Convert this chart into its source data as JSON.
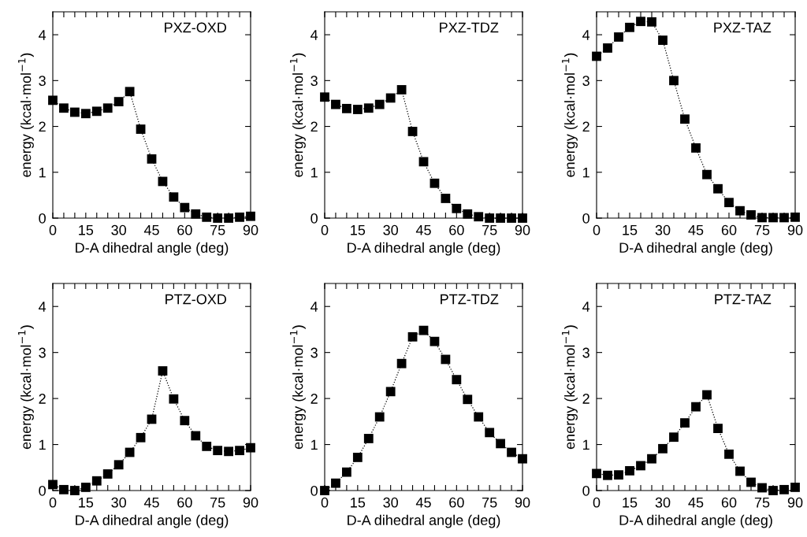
{
  "chart_data": [
    {
      "type": "line",
      "title": "PXZ-OXD",
      "xlabel": "D-A dihedral angle (deg)",
      "ylabel": "energy (kcal·mol$^{−1}$)",
      "x": [
        0,
        5,
        10,
        15,
        20,
        25,
        30,
        35,
        40,
        45,
        50,
        55,
        60,
        65,
        70,
        75,
        80,
        85,
        90
      ],
      "xlim": [
        0,
        90
      ],
      "ylim": [
        0,
        4.5
      ],
      "xticks": [
        0,
        {
          "value": 5,
          "label": null
        },
        {
          "value": 10,
          "label": null
        },
        15,
        {
          "value": 20,
          "label": null
        },
        {
          "value": 25,
          "label": null
        },
        30,
        {
          "value": 35,
          "label": null
        },
        {
          "value": 40,
          "label": null
        },
        45,
        {
          "value": 50,
          "label": null
        },
        {
          "value": 55,
          "label": null
        },
        60,
        {
          "value": 65,
          "label": null
        },
        {
          "value": 70,
          "label": null
        },
        75,
        {
          "value": 80,
          "label": null
        },
        {
          "value": 85,
          "label": null
        },
        90
      ],
      "yticks": [
        0,
        1,
        2,
        3,
        4
      ],
      "marker": "square",
      "line_style": "dotted",
      "grid": false,
      "series": [
        {
          "color": "#000000",
          "values": [
            2.57,
            2.4,
            2.31,
            2.28,
            2.33,
            2.4,
            2.54,
            2.76,
            1.94,
            1.29,
            0.8,
            0.46,
            0.23,
            0.09,
            0.02,
            0.0,
            0.0,
            0.02,
            0.04
          ]
        }
      ]
    },
    {
      "type": "line",
      "title": "PXZ-TDZ",
      "xlabel": "D-A dihedral angle (deg)",
      "ylabel": "energy (kcal·mol$^{−1}$)",
      "x": [
        0,
        5,
        10,
        15,
        20,
        25,
        30,
        35,
        40,
        45,
        50,
        55,
        60,
        65,
        70,
        75,
        80,
        85,
        90
      ],
      "xlim": [
        0,
        90
      ],
      "ylim": [
        0,
        4.5
      ],
      "xticks": [
        0,
        {
          "value": 5,
          "label": null
        },
        {
          "value": 10,
          "label": null
        },
        15,
        {
          "value": 20,
          "label": null
        },
        {
          "value": 25,
          "label": null
        },
        30,
        {
          "value": 35,
          "label": null
        },
        {
          "value": 40,
          "label": null
        },
        45,
        {
          "value": 50,
          "label": null
        },
        {
          "value": 55,
          "label": null
        },
        60,
        {
          "value": 65,
          "label": null
        },
        {
          "value": 70,
          "label": null
        },
        75,
        {
          "value": 80,
          "label": null
        },
        {
          "value": 85,
          "label": null
        },
        90
      ],
      "yticks": [
        0,
        1,
        2,
        3,
        4
      ],
      "marker": "square",
      "line_style": "dotted",
      "grid": false,
      "series": [
        {
          "color": "#000000",
          "values": [
            2.64,
            2.48,
            2.39,
            2.37,
            2.4,
            2.48,
            2.62,
            2.8,
            1.89,
            1.23,
            0.76,
            0.43,
            0.21,
            0.09,
            0.03,
            0.0,
            0.0,
            0.0,
            0.0
          ]
        }
      ]
    },
    {
      "type": "line",
      "title": "PXZ-TAZ",
      "xlabel": "D-A dihedral angle (deg)",
      "ylabel": "energy (kcal·mol$^{−1}$)",
      "x": [
        0,
        5,
        10,
        15,
        20,
        25,
        30,
        35,
        40,
        45,
        50,
        55,
        60,
        65,
        70,
        75,
        80,
        85,
        90
      ],
      "xlim": [
        0,
        90
      ],
      "ylim": [
        0,
        4.5
      ],
      "xticks": [
        0,
        {
          "value": 5,
          "label": null
        },
        {
          "value": 10,
          "label": null
        },
        15,
        {
          "value": 20,
          "label": null
        },
        {
          "value": 25,
          "label": null
        },
        30,
        {
          "value": 35,
          "label": null
        },
        {
          "value": 40,
          "label": null
        },
        45,
        {
          "value": 50,
          "label": null
        },
        {
          "value": 55,
          "label": null
        },
        60,
        {
          "value": 65,
          "label": null
        },
        {
          "value": 70,
          "label": null
        },
        75,
        {
          "value": 80,
          "label": null
        },
        {
          "value": 85,
          "label": null
        },
        90
      ],
      "yticks": [
        0,
        1,
        2,
        3,
        4
      ],
      "marker": "square",
      "line_style": "dotted",
      "grid": false,
      "series": [
        {
          "color": "#000000",
          "values": [
            3.53,
            3.71,
            3.95,
            4.16,
            4.29,
            4.28,
            3.88,
            3.0,
            2.16,
            1.53,
            0.95,
            0.64,
            0.34,
            0.16,
            0.07,
            0.01,
            0.01,
            0.01,
            0.02
          ]
        }
      ]
    },
    {
      "type": "line",
      "title": "PTZ-OXD",
      "xlabel": "D-A dihedral angle (deg)",
      "ylabel": "energy (kcal·mol$^{−1}$)",
      "x": [
        0,
        5,
        10,
        15,
        20,
        25,
        30,
        35,
        40,
        45,
        50,
        55,
        60,
        65,
        70,
        75,
        80,
        85,
        90
      ],
      "xlim": [
        0,
        90
      ],
      "ylim": [
        0,
        4.5
      ],
      "xticks": [
        0,
        {
          "value": 5,
          "label": null
        },
        {
          "value": 10,
          "label": null
        },
        15,
        {
          "value": 20,
          "label": null
        },
        {
          "value": 25,
          "label": null
        },
        30,
        {
          "value": 35,
          "label": null
        },
        {
          "value": 40,
          "label": null
        },
        45,
        {
          "value": 50,
          "label": null
        },
        {
          "value": 55,
          "label": null
        },
        60,
        {
          "value": 65,
          "label": null
        },
        {
          "value": 70,
          "label": null
        },
        75,
        {
          "value": 80,
          "label": null
        },
        {
          "value": 85,
          "label": null
        },
        90
      ],
      "yticks": [
        0,
        1,
        2,
        3,
        4
      ],
      "marker": "square",
      "line_style": "dotted",
      "grid": false,
      "series": [
        {
          "color": "#000000",
          "values": [
            0.13,
            0.02,
            0.0,
            0.07,
            0.21,
            0.36,
            0.56,
            0.83,
            1.15,
            1.55,
            2.6,
            1.99,
            1.52,
            1.19,
            0.96,
            0.87,
            0.85,
            0.87,
            0.93
          ]
        }
      ]
    },
    {
      "type": "line",
      "title": "PTZ-TDZ",
      "xlabel": "D-A dihedral angle (deg)",
      "ylabel": "energy (kcal·mol$^{−1}$)",
      "x": [
        0,
        5,
        10,
        15,
        20,
        25,
        30,
        35,
        40,
        45,
        50,
        55,
        60,
        65,
        70,
        75,
        80,
        85,
        90
      ],
      "xlim": [
        0,
        90
      ],
      "ylim": [
        0,
        4.5
      ],
      "xticks": [
        0,
        {
          "value": 5,
          "label": null
        },
        {
          "value": 10,
          "label": null
        },
        15,
        {
          "value": 20,
          "label": null
        },
        {
          "value": 25,
          "label": null
        },
        30,
        {
          "value": 35,
          "label": null
        },
        {
          "value": 40,
          "label": null
        },
        45,
        {
          "value": 50,
          "label": null
        },
        {
          "value": 55,
          "label": null
        },
        60,
        {
          "value": 65,
          "label": null
        },
        {
          "value": 70,
          "label": null
        },
        75,
        {
          "value": 80,
          "label": null
        },
        {
          "value": 85,
          "label": null
        },
        90
      ],
      "yticks": [
        0,
        1,
        2,
        3,
        4
      ],
      "marker": "square",
      "line_style": "dotted",
      "grid": false,
      "series": [
        {
          "color": "#000000",
          "values": [
            0.0,
            0.16,
            0.4,
            0.72,
            1.13,
            1.6,
            2.15,
            2.76,
            3.34,
            3.48,
            3.24,
            2.85,
            2.41,
            1.98,
            1.6,
            1.26,
            1.02,
            0.83,
            0.69
          ]
        }
      ]
    },
    {
      "type": "line",
      "title": "PTZ-TAZ",
      "xlabel": "D-A dihedral angle (deg)",
      "ylabel": "energy (kcal·mol$^{−1}$)",
      "x": [
        0,
        5,
        10,
        15,
        20,
        25,
        30,
        35,
        40,
        45,
        50,
        55,
        60,
        65,
        70,
        75,
        80,
        85,
        90
      ],
      "xlim": [
        0,
        90
      ],
      "ylim": [
        0,
        4.5
      ],
      "xticks": [
        0,
        {
          "value": 5,
          "label": null
        },
        {
          "value": 10,
          "label": null
        },
        15,
        {
          "value": 20,
          "label": null
        },
        {
          "value": 25,
          "label": null
        },
        30,
        {
          "value": 35,
          "label": null
        },
        {
          "value": 40,
          "label": null
        },
        45,
        {
          "value": 50,
          "label": null
        },
        {
          "value": 55,
          "label": null
        },
        60,
        {
          "value": 65,
          "label": null
        },
        {
          "value": 70,
          "label": null
        },
        75,
        {
          "value": 80,
          "label": null
        },
        {
          "value": 85,
          "label": null
        },
        90
      ],
      "yticks": [
        0,
        1,
        2,
        3,
        4
      ],
      "marker": "square",
      "line_style": "dotted",
      "grid": false,
      "series": [
        {
          "color": "#000000",
          "values": [
            0.37,
            0.33,
            0.34,
            0.43,
            0.54,
            0.69,
            0.91,
            1.16,
            1.47,
            1.82,
            2.08,
            1.35,
            0.79,
            0.42,
            0.18,
            0.06,
            0.0,
            0.02,
            0.07
          ]
        }
      ]
    }
  ]
}
